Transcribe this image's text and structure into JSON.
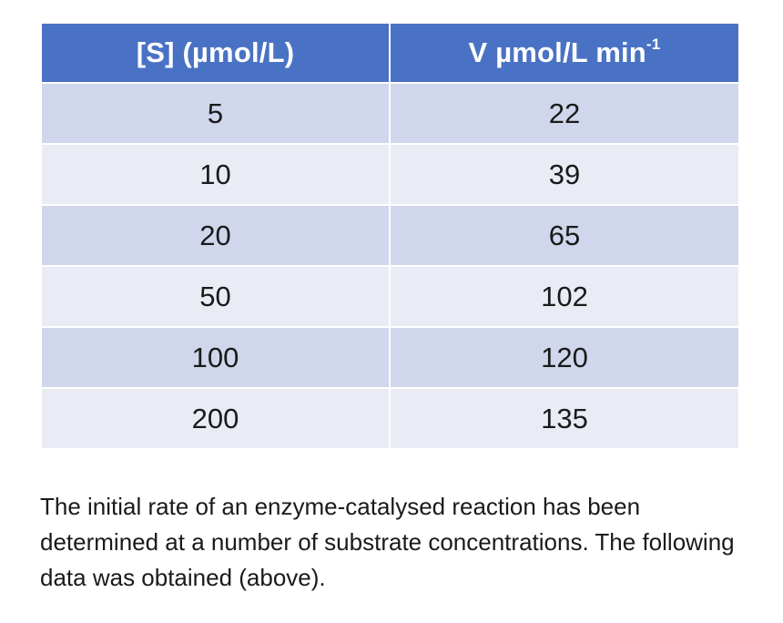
{
  "table": {
    "columns": [
      {
        "label": "[S] (µmol/L)",
        "superscript": ""
      },
      {
        "label": "V µmol/L min",
        "superscript": "-1"
      }
    ],
    "rows": [
      {
        "s": "5",
        "v": "22"
      },
      {
        "s": "10",
        "v": "39"
      },
      {
        "s": "20",
        "v": "65"
      },
      {
        "s": "50",
        "v": "102"
      },
      {
        "s": "100",
        "v": "120"
      },
      {
        "s": "200",
        "v": "135"
      }
    ]
  },
  "caption": {
    "text": "The initial rate of an enzyme-catalysed reaction has been determined at a number of substrate concentrations. The following data was obtained (above)."
  },
  "colors": {
    "header_bg": "#4a72c4",
    "row_dark": "#d0d6eb",
    "row_light": "#e9ecf5"
  }
}
